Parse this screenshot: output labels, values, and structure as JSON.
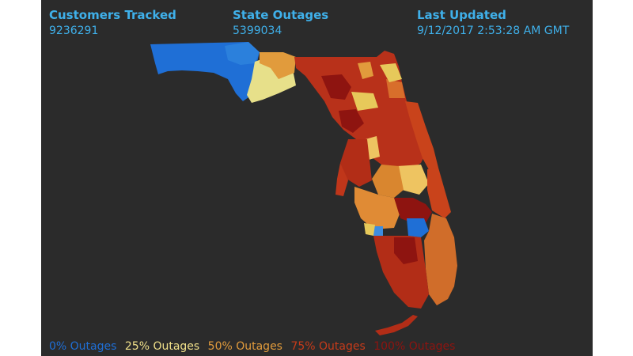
{
  "header": {
    "customers_tracked": {
      "label": "Customers Tracked",
      "value": "9236291"
    },
    "state_outages": {
      "label": "State Outages",
      "value": "5399034"
    },
    "last_updated": {
      "label": "Last Updated",
      "value": "9/12/2017 2:53:28 AM GMT"
    }
  },
  "legend": {
    "items": [
      {
        "label": "0% Outages",
        "color": "#1f6fd6"
      },
      {
        "label": "25% Outages",
        "color": "#f0e08a"
      },
      {
        "label": "50% Outages",
        "color": "#e19b3c"
      },
      {
        "label": "75% Outages",
        "color": "#c63b1a"
      },
      {
        "label": "100% Outages",
        "color": "#8e1410"
      }
    ]
  },
  "colors": {
    "accent_text": "#3fb0ea",
    "background": "#2b2b2b"
  }
}
